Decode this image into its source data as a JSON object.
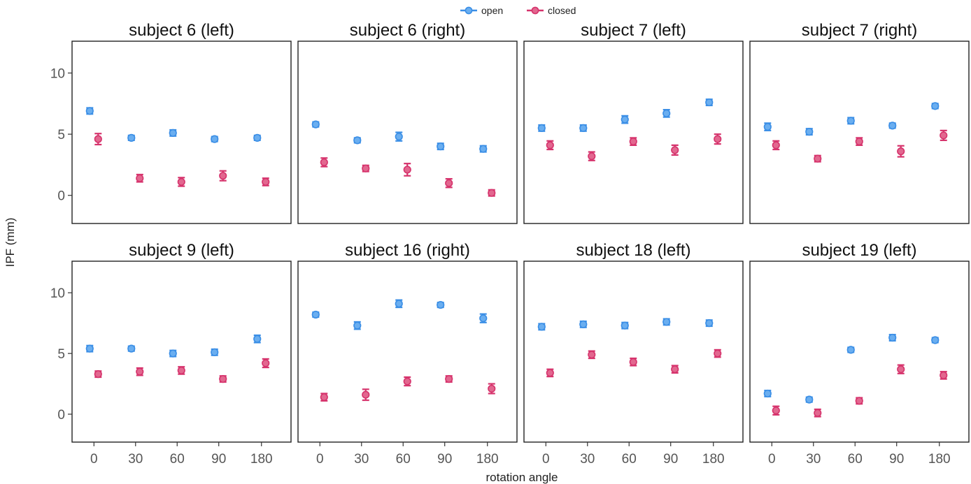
{
  "chart_data": {
    "type": "scatter",
    "xlabel": "rotation angle",
    "ylabel": "IPF (mm)",
    "x_tick_labels": [
      "0",
      "30",
      "60",
      "90",
      "180"
    ],
    "y_ticks": [
      0,
      5,
      10
    ],
    "ylim": [
      -2.3,
      12.6
    ],
    "grid": false,
    "legend_position": "top",
    "series": [
      {
        "name": "open",
        "color": "#3a8ee6"
      },
      {
        "name": "closed",
        "color": "#d6336c"
      }
    ],
    "panels": [
      {
        "title": "subject 6 (left)",
        "open": {
          "values": [
            6.9,
            4.7,
            5.1,
            4.6,
            4.7
          ],
          "errors": [
            0.25,
            0.2,
            0.25,
            0.2,
            0.2
          ]
        },
        "closed": {
          "values": [
            4.6,
            1.4,
            1.1,
            1.6,
            1.1
          ],
          "errors": [
            0.45,
            0.3,
            0.35,
            0.4,
            0.3
          ]
        }
      },
      {
        "title": "subject 6 (right)",
        "open": {
          "values": [
            5.8,
            4.5,
            4.8,
            4.0,
            3.8
          ],
          "errors": [
            0.2,
            0.2,
            0.35,
            0.25,
            0.25
          ]
        },
        "closed": {
          "values": [
            2.7,
            2.2,
            2.1,
            1.0,
            0.2
          ],
          "errors": [
            0.35,
            0.25,
            0.5,
            0.35,
            0.25
          ]
        }
      },
      {
        "title": "subject 7 (left)",
        "open": {
          "values": [
            5.5,
            5.5,
            6.2,
            6.7,
            7.6
          ],
          "errors": [
            0.25,
            0.25,
            0.3,
            0.3,
            0.25
          ]
        },
        "closed": {
          "values": [
            4.1,
            3.2,
            4.4,
            3.7,
            4.6
          ],
          "errors": [
            0.35,
            0.35,
            0.3,
            0.4,
            0.4
          ]
        }
      },
      {
        "title": "subject 7 (right)",
        "open": {
          "values": [
            5.6,
            5.2,
            6.1,
            5.7,
            7.3
          ],
          "errors": [
            0.3,
            0.25,
            0.25,
            0.2,
            0.2
          ]
        },
        "closed": {
          "values": [
            4.1,
            3.0,
            4.4,
            3.6,
            4.9
          ],
          "errors": [
            0.35,
            0.25,
            0.3,
            0.45,
            0.4
          ]
        }
      },
      {
        "title": "subject 9 (left)",
        "open": {
          "values": [
            5.4,
            5.4,
            5.0,
            5.1,
            6.2
          ],
          "errors": [
            0.25,
            0.2,
            0.25,
            0.25,
            0.3
          ]
        },
        "closed": {
          "values": [
            3.3,
            3.5,
            3.6,
            2.9,
            4.2
          ],
          "errors": [
            0.25,
            0.3,
            0.3,
            0.25,
            0.35
          ]
        }
      },
      {
        "title": "subject 16 (right)",
        "open": {
          "values": [
            8.2,
            7.3,
            9.1,
            9.0,
            7.9
          ],
          "errors": [
            0.2,
            0.3,
            0.3,
            0.2,
            0.35
          ]
        },
        "closed": {
          "values": [
            1.4,
            1.6,
            2.7,
            2.9,
            2.1
          ],
          "errors": [
            0.3,
            0.45,
            0.35,
            0.25,
            0.4
          ]
        }
      },
      {
        "title": "subject 18 (left)",
        "open": {
          "values": [
            7.2,
            7.4,
            7.3,
            7.6,
            7.5
          ],
          "errors": [
            0.25,
            0.25,
            0.25,
            0.25,
            0.25
          ]
        },
        "closed": {
          "values": [
            3.4,
            4.9,
            4.3,
            3.7,
            5.0
          ],
          "errors": [
            0.3,
            0.3,
            0.3,
            0.3,
            0.3
          ]
        }
      },
      {
        "title": "subject 19 (left)",
        "open": {
          "values": [
            1.7,
            1.2,
            5.3,
            6.3,
            6.1
          ],
          "errors": [
            0.25,
            0.2,
            0.2,
            0.25,
            0.2
          ]
        },
        "closed": {
          "values": [
            0.3,
            0.1,
            1.1,
            3.7,
            3.2
          ],
          "errors": [
            0.35,
            0.3,
            0.25,
            0.35,
            0.3
          ]
        }
      }
    ]
  }
}
